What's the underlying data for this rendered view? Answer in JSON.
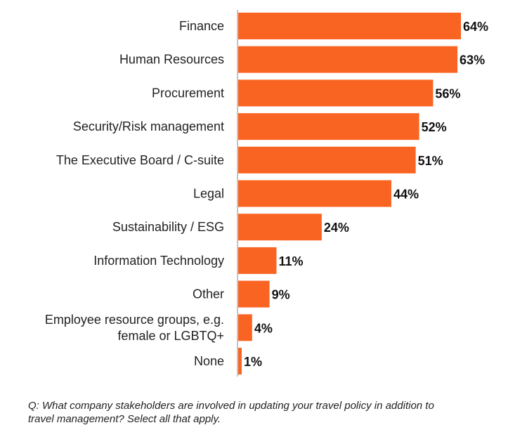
{
  "chart_data": {
    "type": "bar",
    "orientation": "horizontal",
    "categories": [
      "Finance",
      "Human Resources",
      "Procurement",
      "Security/Risk management",
      "The Executive Board / C-suite",
      "Legal",
      "Sustainability / ESG",
      "Information Technology",
      "Other",
      "Employee resource groups, e.g. female or LGBTQ+",
      "None"
    ],
    "category_lines": [
      [
        "Finance"
      ],
      [
        "Human Resources"
      ],
      [
        "Procurement"
      ],
      [
        "Security/Risk management"
      ],
      [
        "The Executive Board / C-suite"
      ],
      [
        "Legal"
      ],
      [
        "Sustainability / ESG"
      ],
      [
        "Information Technology"
      ],
      [
        "Other"
      ],
      [
        "Employee resource groups, e.g.",
        "female or LGBTQ+"
      ],
      [
        "None"
      ]
    ],
    "values": [
      64,
      63,
      56,
      52,
      51,
      44,
      24,
      11,
      9,
      4,
      1
    ],
    "value_labels": [
      "64%",
      "63%",
      "56%",
      "52%",
      "51%",
      "44%",
      "24%",
      "11%",
      "9%",
      "4%",
      "1%"
    ],
    "unit": "%",
    "bar_color": "#fa6422",
    "axis_color": "#b0b0b0",
    "xlim": [
      0,
      64
    ],
    "grid": false,
    "legend": "none"
  },
  "footnote": "Q: What company stakeholders are involved in updating your travel policy in addition to travel management? Select all that apply."
}
